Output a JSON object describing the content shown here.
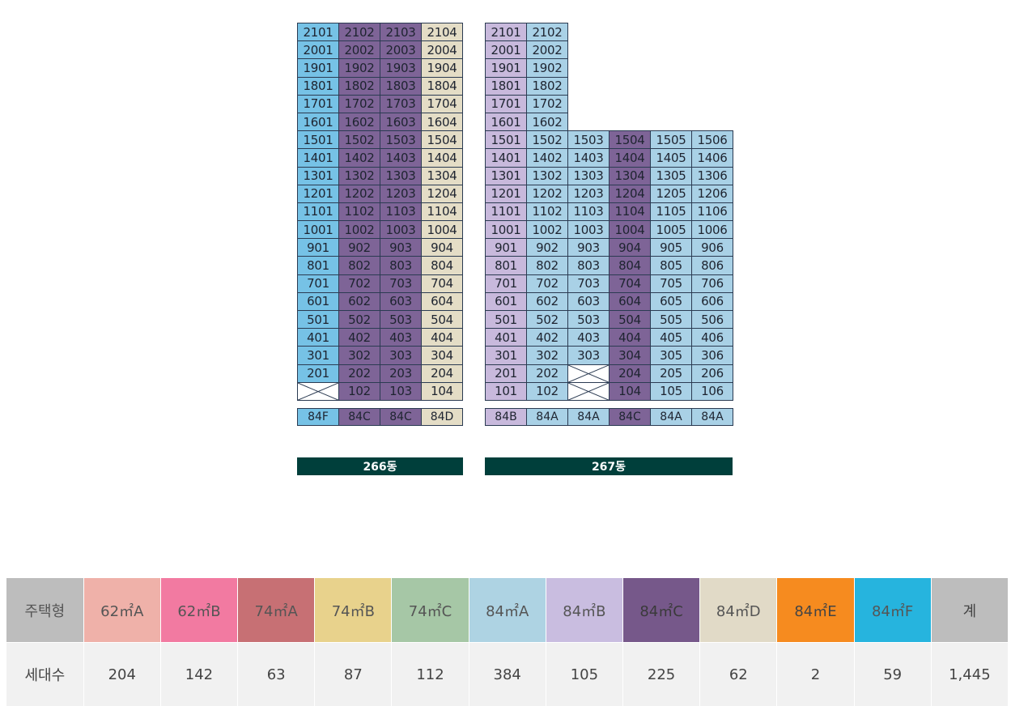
{
  "buildings": [
    {
      "id": "b266",
      "label": "266동",
      "rows": [
        [
          "2101",
          "2102",
          "2103",
          "2104"
        ],
        [
          "2001",
          "2002",
          "2003",
          "2004"
        ],
        [
          "1901",
          "1902",
          "1903",
          "1904"
        ],
        [
          "1801",
          "1802",
          "1803",
          "1804"
        ],
        [
          "1701",
          "1702",
          "1703",
          "1704"
        ],
        [
          "1601",
          "1602",
          "1603",
          "1604"
        ],
        [
          "1501",
          "1502",
          "1503",
          "1504"
        ],
        [
          "1401",
          "1402",
          "1403",
          "1404"
        ],
        [
          "1301",
          "1302",
          "1303",
          "1304"
        ],
        [
          "1201",
          "1202",
          "1203",
          "1204"
        ],
        [
          "1101",
          "1102",
          "1103",
          "1104"
        ],
        [
          "1001",
          "1002",
          "1003",
          "1004"
        ],
        [
          "901",
          "902",
          "903",
          "904"
        ],
        [
          "801",
          "802",
          "803",
          "804"
        ],
        [
          "701",
          "702",
          "703",
          "704"
        ],
        [
          "601",
          "602",
          "603",
          "604"
        ],
        [
          "501",
          "502",
          "503",
          "504"
        ],
        [
          "401",
          "402",
          "403",
          "404"
        ],
        [
          "301",
          "302",
          "303",
          "304"
        ],
        [
          "201",
          "202",
          "203",
          "204"
        ],
        [
          "X",
          "102",
          "103",
          "104"
        ]
      ],
      "types": [
        "84F",
        "84C",
        "84C",
        "84D"
      ]
    },
    {
      "id": "b267",
      "label": "267동",
      "rows": [
        [
          "2101",
          "2102",
          "",
          "",
          "",
          ""
        ],
        [
          "2001",
          "2002",
          "",
          "",
          "",
          ""
        ],
        [
          "1901",
          "1902",
          "",
          "",
          "",
          ""
        ],
        [
          "1801",
          "1802",
          "",
          "",
          "",
          ""
        ],
        [
          "1701",
          "1702",
          "",
          "",
          "",
          ""
        ],
        [
          "1601",
          "1602",
          "",
          "",
          "",
          ""
        ],
        [
          "1501",
          "1502",
          "1503",
          "1504",
          "1505",
          "1506"
        ],
        [
          "1401",
          "1402",
          "1403",
          "1404",
          "1405",
          "1406"
        ],
        [
          "1301",
          "1302",
          "1303",
          "1304",
          "1305",
          "1306"
        ],
        [
          "1201",
          "1202",
          "1203",
          "1204",
          "1205",
          "1206"
        ],
        [
          "1101",
          "1102",
          "1103",
          "1104",
          "1105",
          "1106"
        ],
        [
          "1001",
          "1002",
          "1003",
          "1004",
          "1005",
          "1006"
        ],
        [
          "901",
          "902",
          "903",
          "904",
          "905",
          "906"
        ],
        [
          "801",
          "802",
          "803",
          "804",
          "805",
          "806"
        ],
        [
          "701",
          "702",
          "703",
          "704",
          "705",
          "706"
        ],
        [
          "601",
          "602",
          "603",
          "604",
          "605",
          "606"
        ],
        [
          "501",
          "502",
          "503",
          "504",
          "505",
          "506"
        ],
        [
          "401",
          "402",
          "403",
          "404",
          "405",
          "406"
        ],
        [
          "301",
          "302",
          "303",
          "304",
          "305",
          "306"
        ],
        [
          "201",
          "202",
          "X",
          "204",
          "205",
          "206"
        ],
        [
          "101",
          "102",
          "X",
          "104",
          "105",
          "106"
        ]
      ],
      "types": [
        "84B",
        "84A",
        "84A",
        "84C",
        "84A",
        "84A"
      ]
    }
  ],
  "summary": {
    "header_label": "주택형",
    "count_label": "세대수",
    "types": [
      {
        "name": "62㎡A",
        "count": "204",
        "color": "#efb1a9",
        "text_color": "#555555"
      },
      {
        "name": "62㎡B",
        "count": "142",
        "color": "#f27aa1",
        "text_color": "#555555"
      },
      {
        "name": "74㎡A",
        "count": "63",
        "color": "#c77074",
        "text_color": "#555555"
      },
      {
        "name": "74㎡B",
        "count": "87",
        "color": "#e8d28c",
        "text_color": "#555555"
      },
      {
        "name": "74㎡C",
        "count": "112",
        "color": "#a6c7a6",
        "text_color": "#555555"
      },
      {
        "name": "84㎡A",
        "count": "384",
        "color": "#aed3e3",
        "text_color": "#555555"
      },
      {
        "name": "84㎡B",
        "count": "105",
        "color": "#c9bde0",
        "text_color": "#555555"
      },
      {
        "name": "84㎡C",
        "count": "225",
        "color": "#76588a",
        "text_color": "#3a3a3a"
      },
      {
        "name": "84㎡D",
        "count": "62",
        "color": "#e1dac7",
        "text_color": "#555555"
      },
      {
        "name": "84㎡E",
        "count": "2",
        "color": "#f68b1f",
        "text_color": "#444444"
      },
      {
        "name": "84㎡F",
        "count": "59",
        "color": "#26b4de",
        "text_color": "#555555"
      }
    ],
    "total_label": "계",
    "total_count": "1,445",
    "total_color": "#bdbdbd"
  }
}
